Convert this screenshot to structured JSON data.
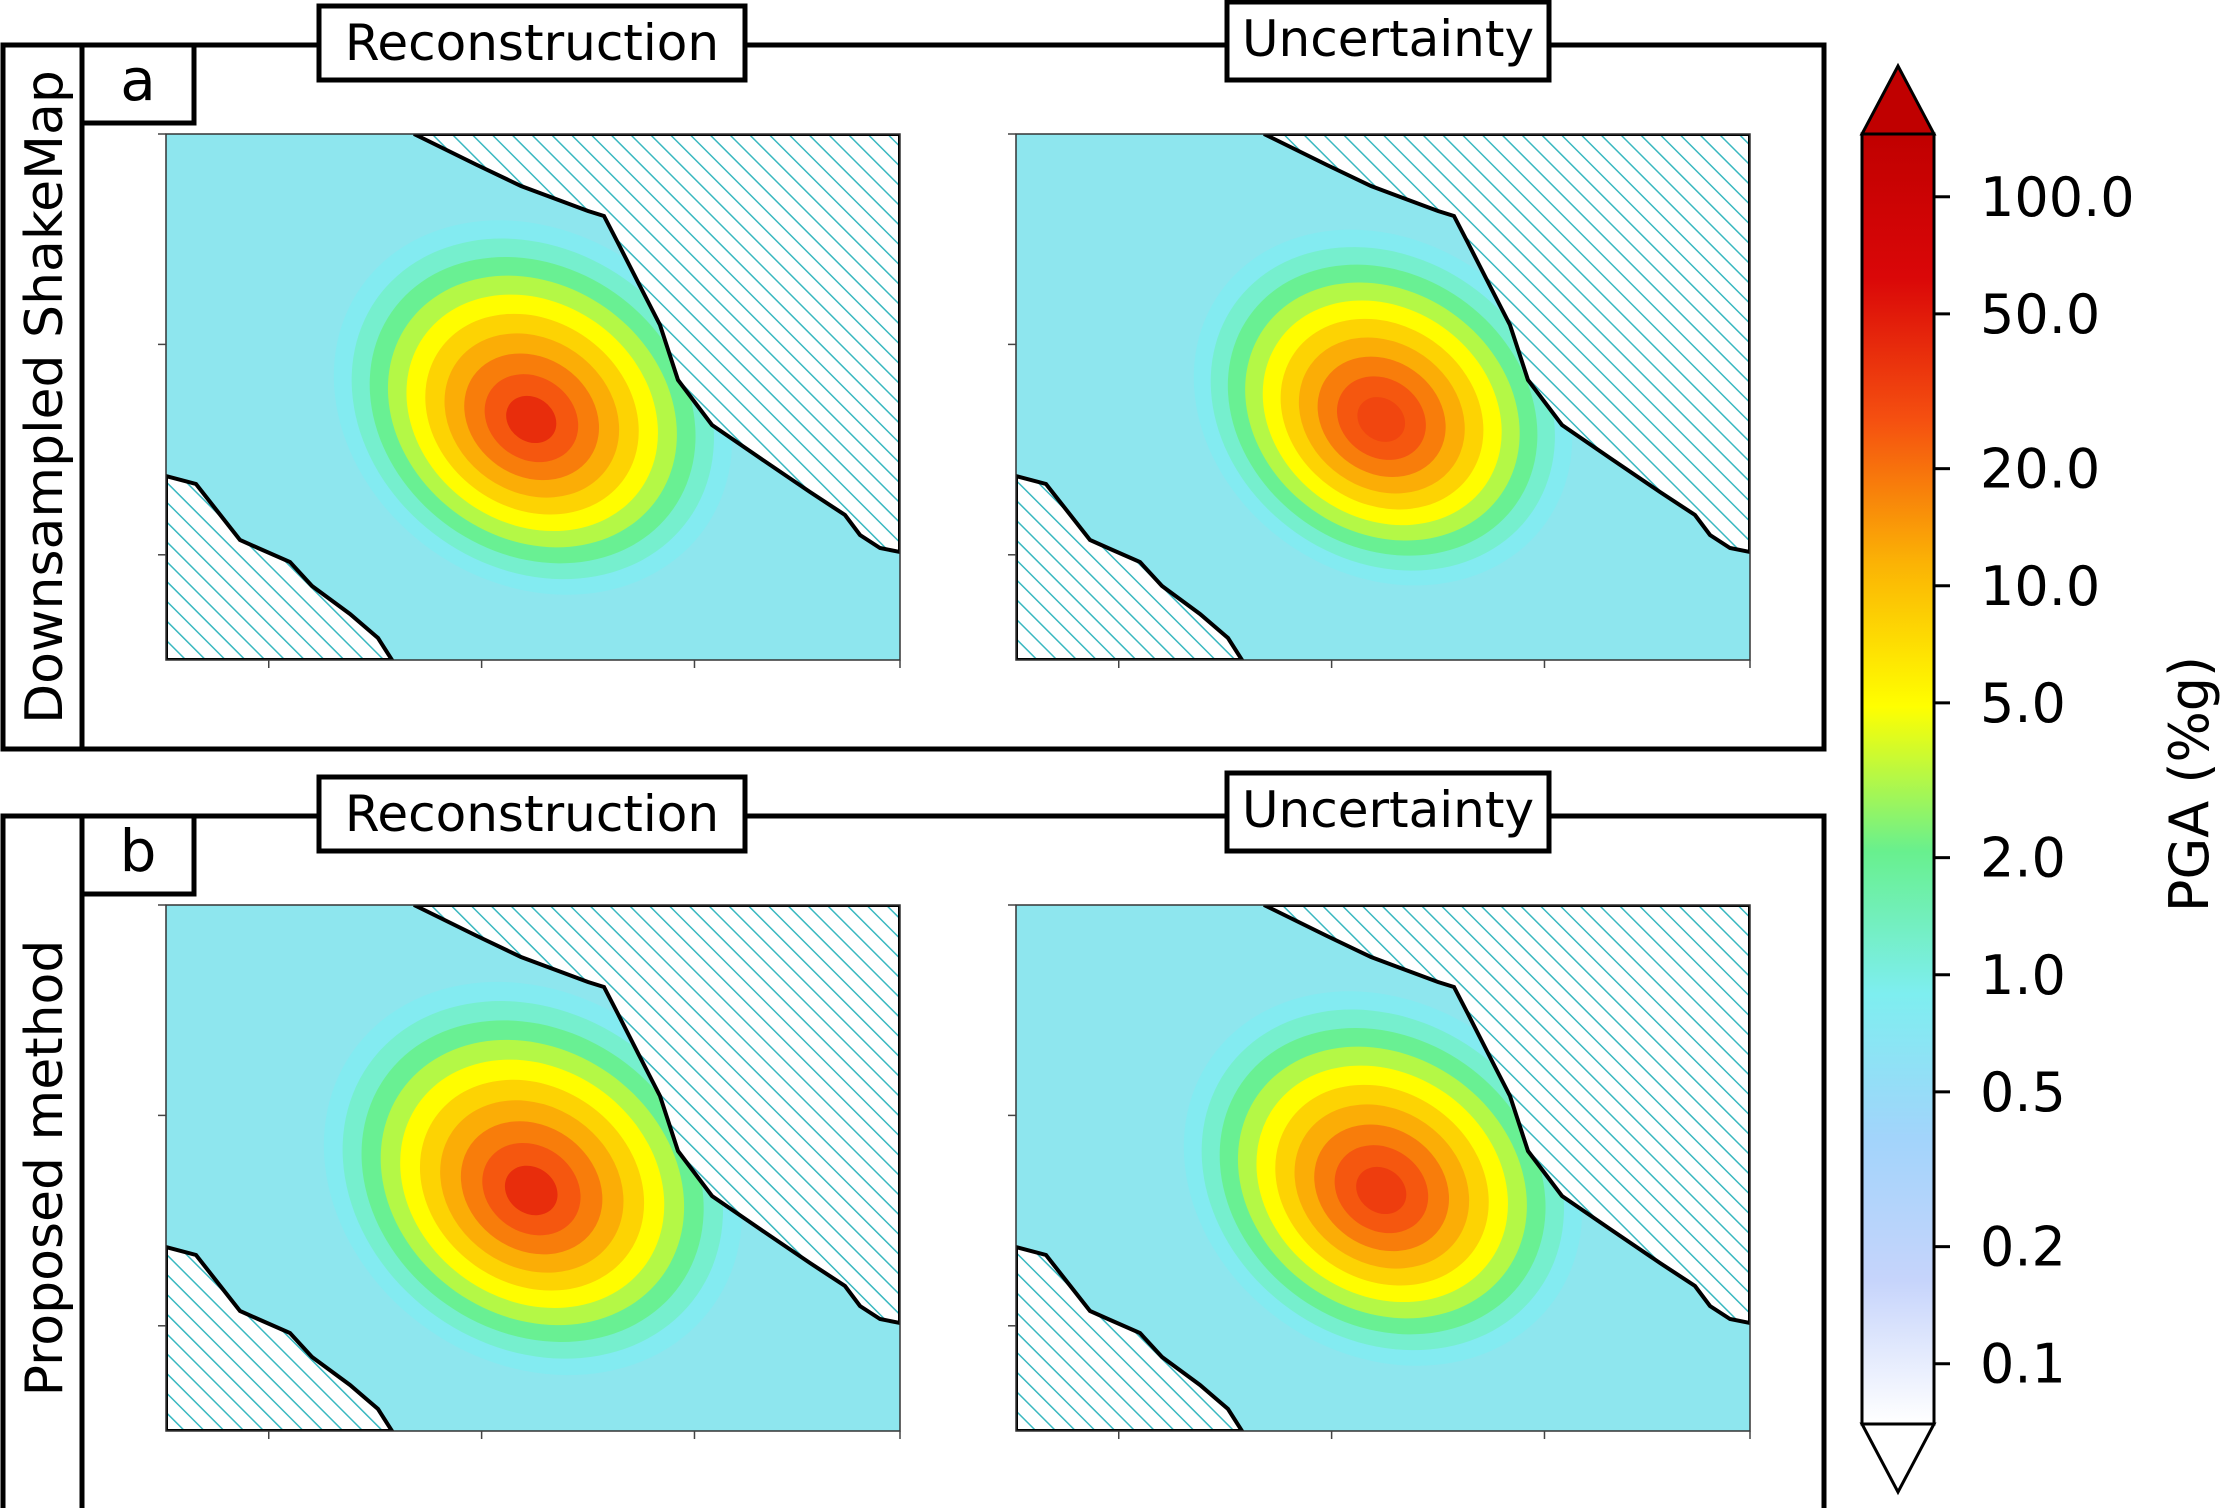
{
  "rows": [
    {
      "letter": "a",
      "row_label": "Downsampled ShakeMap",
      "panels": [
        {
          "title": "Reconstruction",
          "peak_pga": 40,
          "peak_pos": [
            0.5,
            0.52
          ],
          "spread": 1.0
        },
        {
          "title": "Uncertainty",
          "peak_pga": 30,
          "peak_pos": [
            0.5,
            0.52
          ],
          "spread": 0.95
        }
      ]
    },
    {
      "letter": "b",
      "row_label": "Proposed method",
      "panels": [
        {
          "title": "Reconstruction",
          "peak_pga": 40,
          "peak_pos": [
            0.5,
            0.52
          ],
          "spread": 1.05
        },
        {
          "title": "Uncertainty",
          "peak_pga": 33,
          "peak_pos": [
            0.5,
            0.52
          ],
          "spread": 1.0
        }
      ]
    }
  ],
  "colorbar": {
    "label": "PGA (%g)",
    "ticks": [
      "100.0",
      "50.0",
      "20.0",
      "10.0",
      "5.0",
      "2.0",
      "1.0",
      "0.5",
      "0.2",
      "0.1"
    ],
    "tick_values": [
      100,
      50,
      20,
      10,
      5,
      2,
      1,
      0.5,
      0.2,
      0.1
    ],
    "scale": "log",
    "extend": "both",
    "colors": [
      "#ffffff",
      "#c6d4fb",
      "#a2d4fb",
      "#7eeef0",
      "#68f08e",
      "#ffff00",
      "#fbb305",
      "#f55010",
      "#da0708",
      "#c00000"
    ]
  },
  "chart_data": {
    "type": "heatmap",
    "title": "",
    "panels": [
      "Downsampled ShakeMap / Reconstruction",
      "Downsampled ShakeMap / Uncertainty",
      "Proposed method / Reconstruction",
      "Proposed method / Uncertainty"
    ],
    "value_label": "PGA (%g)",
    "value_scale": "log",
    "value_range": [
      0.1,
      100
    ],
    "peak_values": [
      40,
      30,
      40,
      33
    ],
    "background_values": [
      0.5,
      0.5,
      0.5,
      0.5
    ],
    "legend": "right"
  }
}
